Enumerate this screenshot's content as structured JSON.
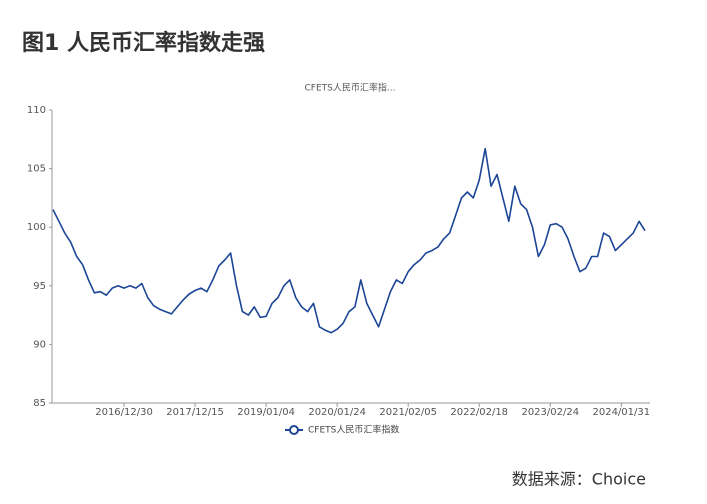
{
  "heading": "图1  人民币汇率指数走强",
  "source": "数据来源：Choice",
  "chart_data": {
    "type": "line",
    "title": "CFETS人民币汇率指...",
    "categories": [
      null,
      null,
      null,
      null,
      null,
      null,
      null,
      null,
      null,
      null,
      null,
      null,
      "2016/12/30",
      null,
      null,
      null,
      null,
      null,
      null,
      null,
      null,
      null,
      null,
      null,
      "2017/12/15",
      null,
      null,
      null,
      null,
      null,
      null,
      null,
      null,
      null,
      null,
      null,
      "2019/01/04",
      null,
      null,
      null,
      null,
      null,
      null,
      null,
      null,
      null,
      null,
      null,
      "2020/01/24",
      null,
      null,
      null,
      null,
      null,
      null,
      null,
      null,
      null,
      null,
      null,
      "2021/02/05",
      null,
      null,
      null,
      null,
      null,
      null,
      null,
      null,
      null,
      null,
      null,
      "2022/02/18",
      null,
      null,
      null,
      null,
      null,
      null,
      null,
      null,
      null,
      null,
      null,
      "2023/02/24",
      null,
      null,
      null,
      null,
      null,
      null,
      null,
      null,
      null,
      null,
      null,
      "2024/01/31",
      null,
      null,
      null,
      null
    ],
    "series": [
      {
        "name": "CFETS人民币汇率指数",
        "color": "#1c4596",
        "values": [
          101.5,
          100.5,
          99.5,
          98.7,
          97.5,
          96.8,
          95.5,
          94.4,
          94.5,
          94.2,
          94.8,
          95.0,
          94.8,
          95.0,
          94.8,
          95.2,
          94.0,
          93.3,
          93.0,
          92.8,
          92.6,
          93.2,
          93.8,
          94.3,
          94.6,
          94.8,
          94.5,
          95.5,
          96.7,
          97.2,
          97.8,
          95.0,
          92.8,
          92.5,
          93.2,
          92.3,
          92.4,
          93.5,
          94.0,
          95.0,
          95.5,
          94.0,
          93.2,
          92.8,
          93.5,
          91.5,
          91.2,
          91.0,
          91.3,
          91.8,
          92.8,
          93.2,
          95.5,
          93.5,
          92.5,
          91.5,
          93.0,
          94.5,
          95.5,
          95.2,
          96.2,
          96.8,
          97.2,
          97.8,
          98.0,
          98.3,
          99.0,
          99.5,
          101.0,
          102.5,
          103.0,
          102.5,
          104.0,
          106.7,
          103.5,
          104.5,
          102.5,
          100.5,
          103.5,
          102.0,
          101.5,
          100.0,
          97.5,
          98.5,
          100.2,
          100.3,
          100.0,
          99.0,
          97.5,
          96.2,
          96.5,
          97.5,
          97.5,
          99.5,
          99.2,
          98.0,
          98.5,
          99.0,
          99.5,
          100.5,
          99.7
        ]
      }
    ],
    "ylim": [
      85,
      110
    ],
    "yticks": [
      85,
      90,
      95,
      100,
      105,
      110
    ],
    "grid": false,
    "legend": "bottom"
  }
}
